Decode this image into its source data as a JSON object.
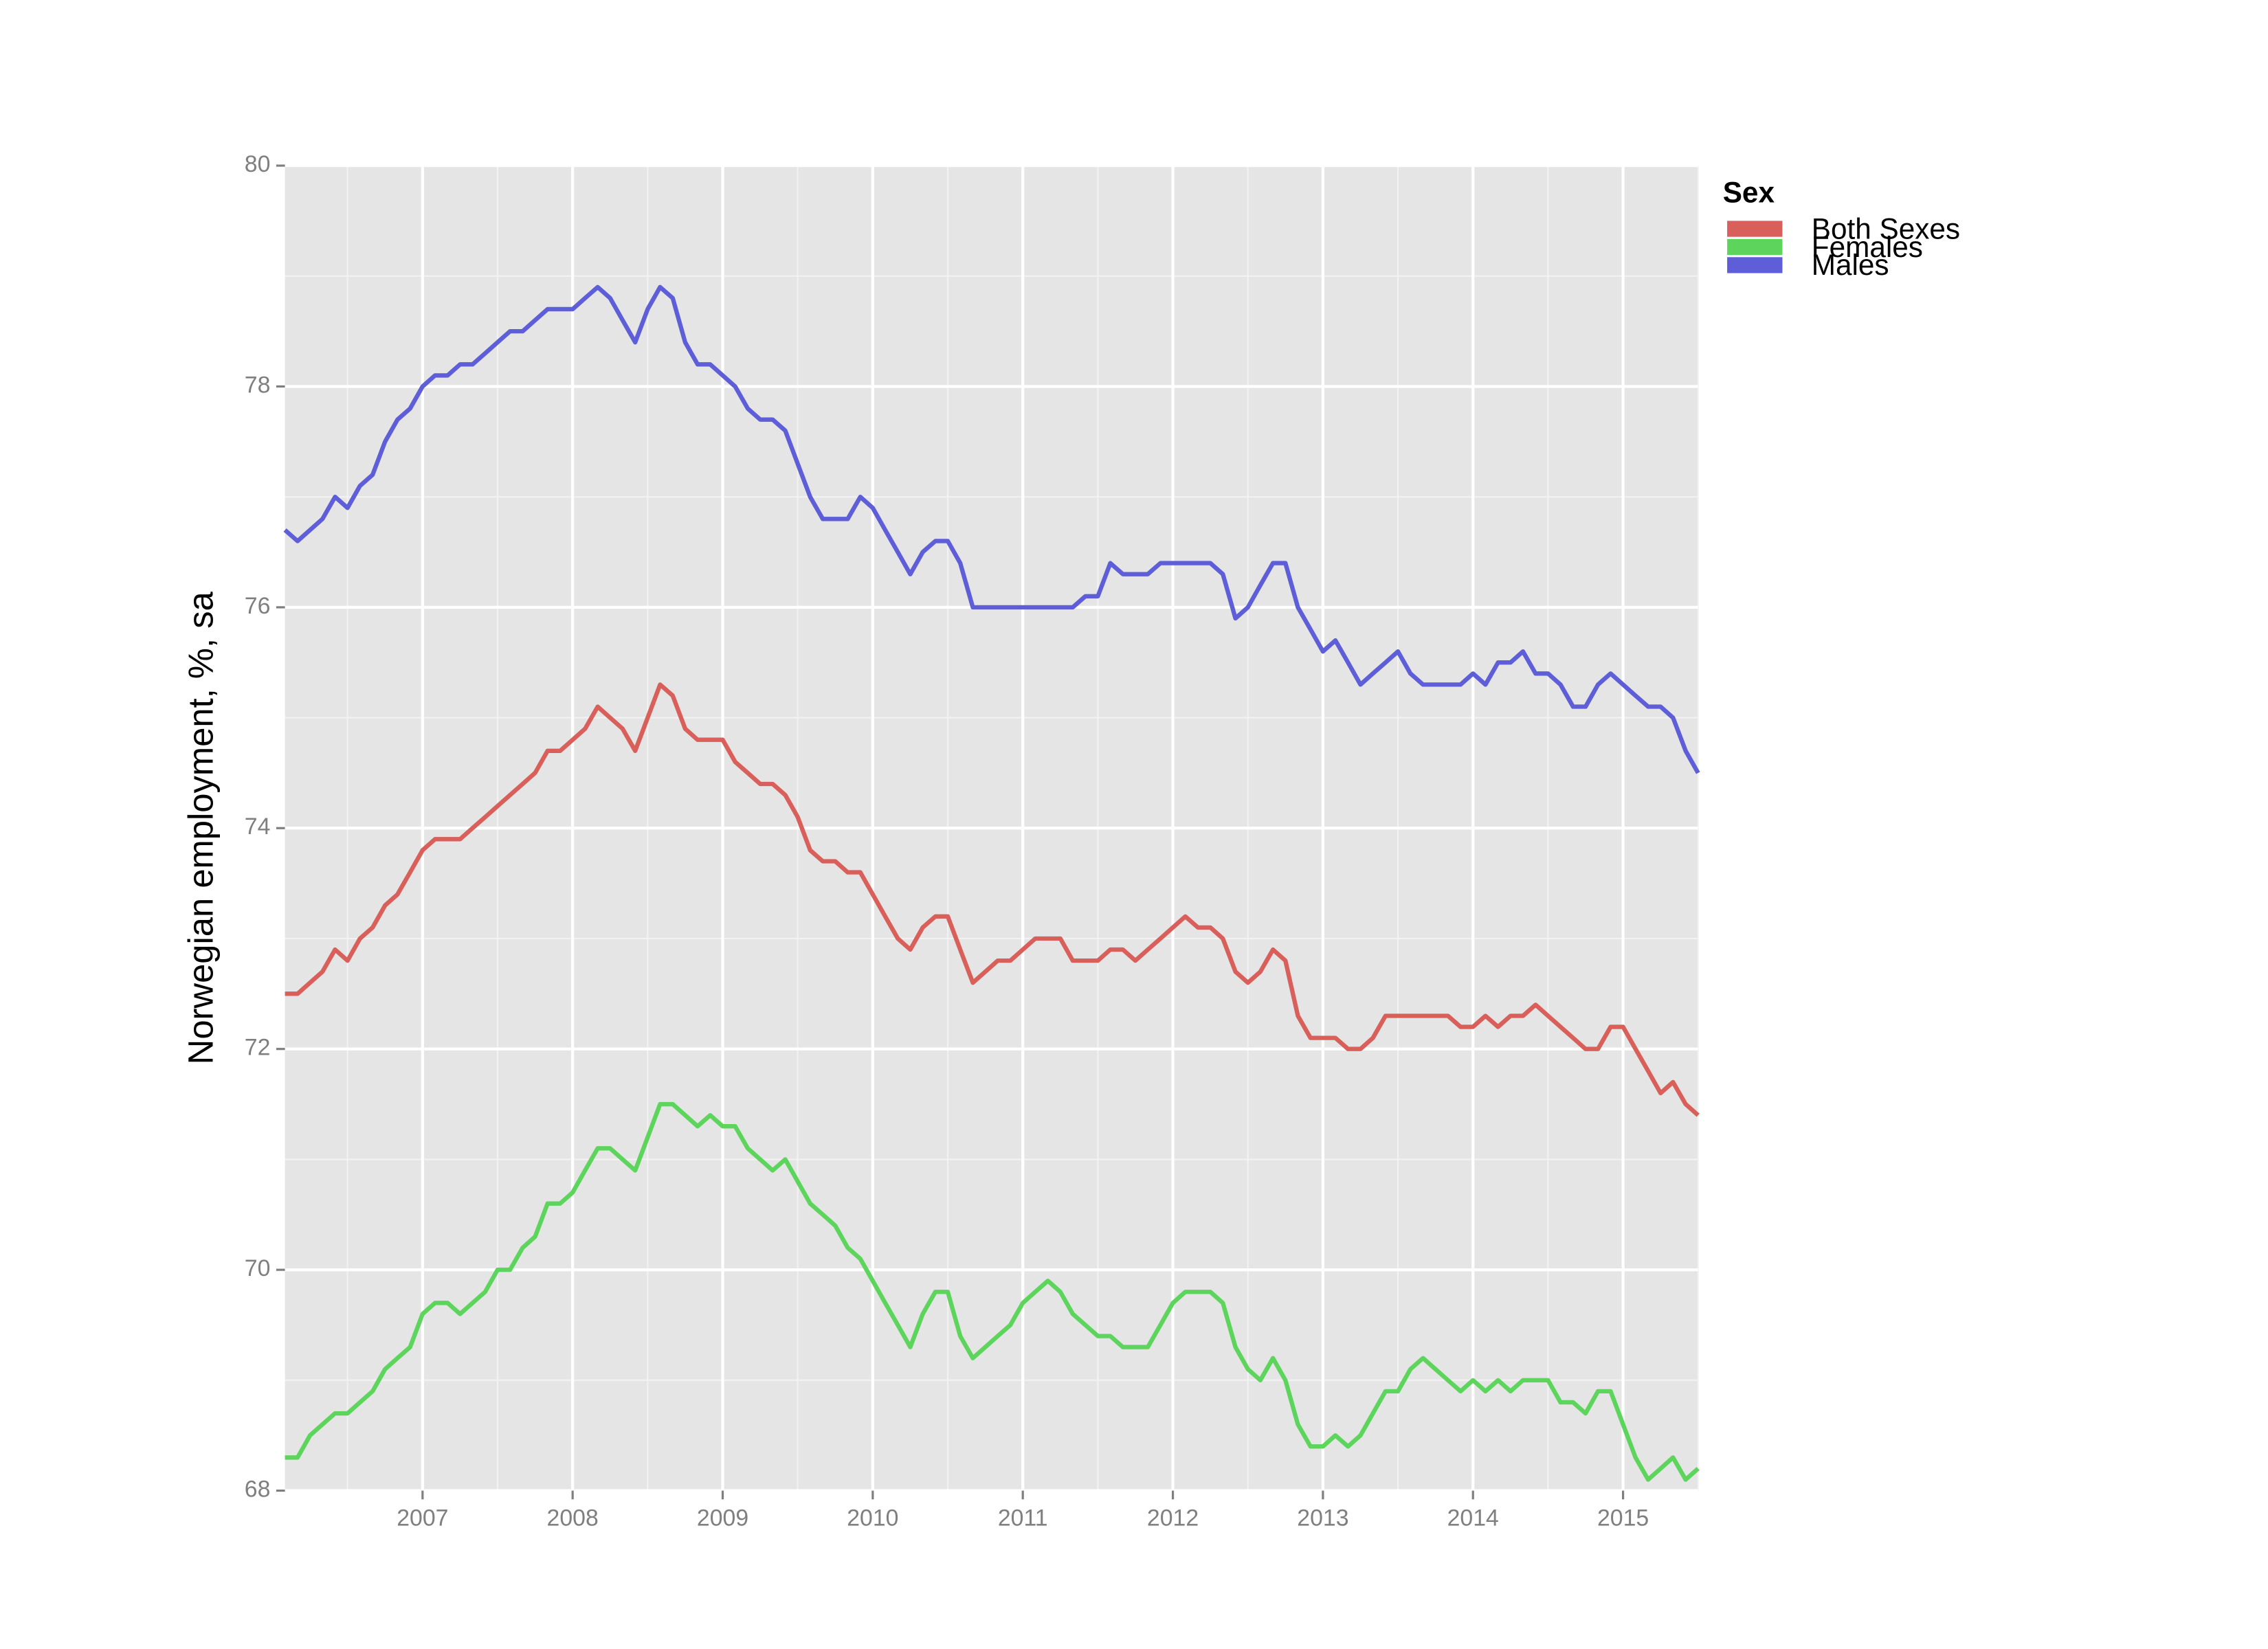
{
  "chart_data": {
    "type": "line",
    "ylabel": "Norwegian employment, %, sa",
    "legend_title": "Sex",
    "legend": "right",
    "grid": true,
    "xlim": [
      2006.083,
      2015.5
    ],
    "xticks": [
      2007,
      2008,
      2009,
      2010,
      2011,
      2012,
      2013,
      2014,
      2015
    ],
    "ylim": [
      68,
      80
    ],
    "yticks": [
      68,
      70,
      72,
      74,
      76,
      78,
      80
    ],
    "x": [
      2006.083,
      2006.167,
      2006.25,
      2006.333,
      2006.417,
      2006.5,
      2006.583,
      2006.667,
      2006.75,
      2006.833,
      2006.917,
      2007,
      2007.083,
      2007.167,
      2007.25,
      2007.333,
      2007.417,
      2007.5,
      2007.583,
      2007.667,
      2007.75,
      2007.833,
      2007.917,
      2008,
      2008.083,
      2008.167,
      2008.25,
      2008.333,
      2008.417,
      2008.5,
      2008.583,
      2008.667,
      2008.75,
      2008.833,
      2008.917,
      2009,
      2009.083,
      2009.167,
      2009.25,
      2009.333,
      2009.417,
      2009.5,
      2009.583,
      2009.667,
      2009.75,
      2009.833,
      2009.917,
      2010,
      2010.083,
      2010.167,
      2010.25,
      2010.333,
      2010.417,
      2010.5,
      2010.583,
      2010.667,
      2010.75,
      2010.833,
      2010.917,
      2011,
      2011.083,
      2011.167,
      2011.25,
      2011.333,
      2011.417,
      2011.5,
      2011.583,
      2011.667,
      2011.75,
      2011.833,
      2011.917,
      2012,
      2012.083,
      2012.167,
      2012.25,
      2012.333,
      2012.417,
      2012.5,
      2012.583,
      2012.667,
      2012.75,
      2012.833,
      2012.917,
      2013,
      2013.083,
      2013.167,
      2013.25,
      2013.333,
      2013.417,
      2013.5,
      2013.583,
      2013.667,
      2013.75,
      2013.833,
      2013.917,
      2014,
      2014.083,
      2014.167,
      2014.25,
      2014.333,
      2014.417,
      2014.5,
      2014.583,
      2014.667,
      2014.75,
      2014.833,
      2014.917,
      2015,
      2015.083,
      2015.167,
      2015.25,
      2015.333,
      2015.417,
      2015.5
    ],
    "series": [
      {
        "name": "Both Sexes",
        "color": "#d9605a",
        "values": [
          72.5,
          72.5,
          72.6,
          72.7,
          72.9,
          72.8,
          73.0,
          73.1,
          73.3,
          73.4,
          73.6,
          73.8,
          73.9,
          73.9,
          73.9,
          74.0,
          74.1,
          74.2,
          74.3,
          74.4,
          74.5,
          74.7,
          74.7,
          74.8,
          74.9,
          75.1,
          75.0,
          74.9,
          74.7,
          75.0,
          75.3,
          75.2,
          74.9,
          74.8,
          74.8,
          74.8,
          74.6,
          74.5,
          74.4,
          74.4,
          74.3,
          74.1,
          73.8,
          73.7,
          73.7,
          73.6,
          73.6,
          73.4,
          73.2,
          73.0,
          72.9,
          73.1,
          73.2,
          73.2,
          72.9,
          72.6,
          72.7,
          72.8,
          72.8,
          72.9,
          73.0,
          73.0,
          73.0,
          72.8,
          72.8,
          72.8,
          72.9,
          72.9,
          72.8,
          72.9,
          73.0,
          73.1,
          73.2,
          73.1,
          73.1,
          73.0,
          72.7,
          72.6,
          72.7,
          72.9,
          72.8,
          72.3,
          72.1,
          72.1,
          72.1,
          72.0,
          72.0,
          72.1,
          72.3,
          72.3,
          72.3,
          72.3,
          72.3,
          72.3,
          72.2,
          72.2,
          72.3,
          72.2,
          72.3,
          72.3,
          72.4,
          72.3,
          72.2,
          72.1,
          72.0,
          72.0,
          72.2,
          72.2,
          72.0,
          71.8,
          71.6,
          71.7,
          71.5,
          71.4
        ]
      },
      {
        "name": "Females",
        "color": "#5dd55d",
        "values": [
          68.3,
          68.3,
          68.5,
          68.6,
          68.7,
          68.7,
          68.8,
          68.9,
          69.1,
          69.2,
          69.3,
          69.6,
          69.7,
          69.7,
          69.6,
          69.7,
          69.8,
          70.0,
          70.0,
          70.2,
          70.3,
          70.6,
          70.6,
          70.7,
          70.9,
          71.1,
          71.1,
          71.0,
          70.9,
          71.2,
          71.5,
          71.5,
          71.4,
          71.3,
          71.4,
          71.3,
          71.3,
          71.1,
          71.0,
          70.9,
          71.0,
          70.8,
          70.6,
          70.5,
          70.4,
          70.2,
          70.1,
          69.9,
          69.7,
          69.5,
          69.3,
          69.6,
          69.8,
          69.8,
          69.4,
          69.2,
          69.3,
          69.4,
          69.5,
          69.7,
          69.8,
          69.9,
          69.8,
          69.6,
          69.5,
          69.4,
          69.4,
          69.3,
          69.3,
          69.3,
          69.5,
          69.7,
          69.8,
          69.8,
          69.8,
          69.7,
          69.3,
          69.1,
          69.0,
          69.2,
          69.0,
          68.6,
          68.4,
          68.4,
          68.5,
          68.4,
          68.5,
          68.7,
          68.9,
          68.9,
          69.1,
          69.2,
          69.1,
          69.0,
          68.9,
          69.0,
          68.9,
          69.0,
          68.9,
          69.0,
          69.0,
          69.0,
          68.8,
          68.8,
          68.7,
          68.9,
          68.9,
          68.6,
          68.3,
          68.1,
          68.2,
          68.3,
          68.1,
          68.2
        ]
      },
      {
        "name": "Males",
        "color": "#5e5ed9",
        "values": [
          76.7,
          76.6,
          76.7,
          76.8,
          77.0,
          76.9,
          77.1,
          77.2,
          77.5,
          77.7,
          77.8,
          78.0,
          78.1,
          78.1,
          78.2,
          78.2,
          78.3,
          78.4,
          78.5,
          78.5,
          78.6,
          78.7,
          78.7,
          78.7,
          78.8,
          78.9,
          78.8,
          78.6,
          78.4,
          78.7,
          78.9,
          78.8,
          78.4,
          78.2,
          78.2,
          78.1,
          78.0,
          77.8,
          77.7,
          77.7,
          77.6,
          77.3,
          77.0,
          76.8,
          76.8,
          76.8,
          77.0,
          76.9,
          76.7,
          76.5,
          76.3,
          76.5,
          76.6,
          76.6,
          76.4,
          76.0,
          76.0,
          76.0,
          76.0,
          76.0,
          76.0,
          76.0,
          76.0,
          76.0,
          76.1,
          76.1,
          76.4,
          76.3,
          76.3,
          76.3,
          76.4,
          76.4,
          76.4,
          76.4,
          76.4,
          76.3,
          75.9,
          76.0,
          76.2,
          76.4,
          76.4,
          76.0,
          75.8,
          75.6,
          75.7,
          75.5,
          75.3,
          75.4,
          75.5,
          75.6,
          75.4,
          75.3,
          75.3,
          75.3,
          75.3,
          75.4,
          75.3,
          75.5,
          75.5,
          75.6,
          75.4,
          75.4,
          75.3,
          75.1,
          75.1,
          75.3,
          75.4,
          75.3,
          75.2,
          75.1,
          75.1,
          75.0,
          74.7,
          74.5
        ]
      }
    ]
  }
}
